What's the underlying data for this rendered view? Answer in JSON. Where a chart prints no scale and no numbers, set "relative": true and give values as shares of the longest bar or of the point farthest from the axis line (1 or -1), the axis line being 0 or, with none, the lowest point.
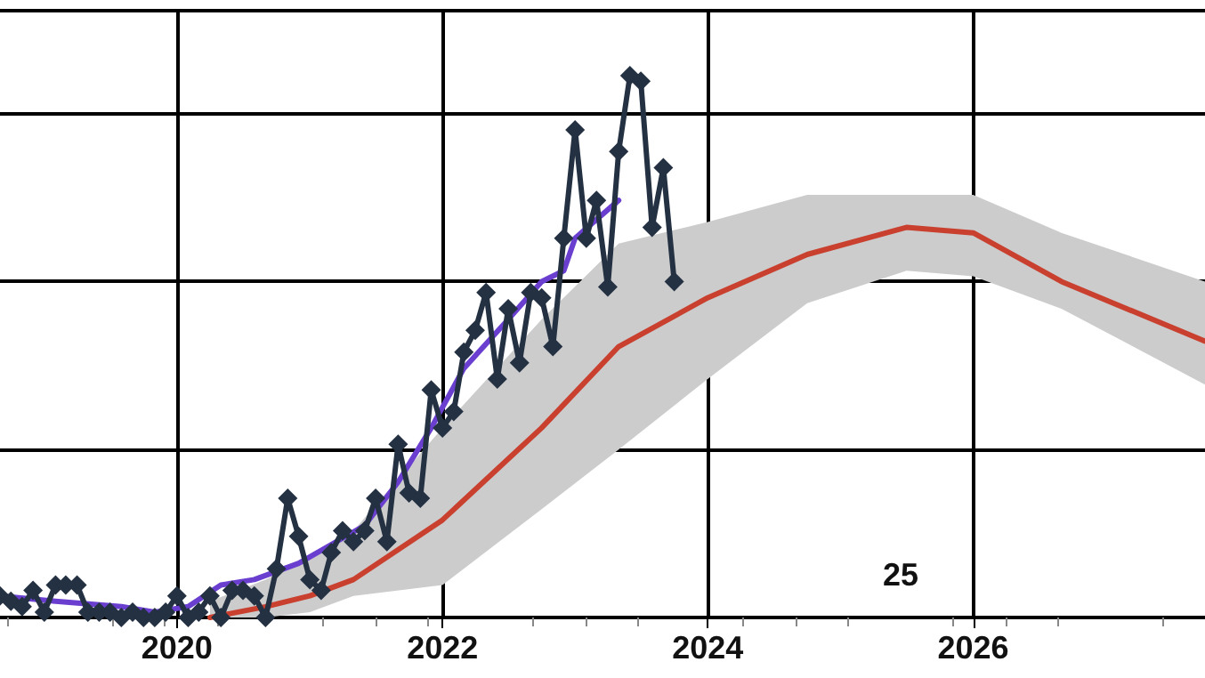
{
  "chart_data": {
    "type": "line",
    "relative": true,
    "xlim": [
      "2018-09",
      "2027-10"
    ],
    "xticks": [
      "2020",
      "2022",
      "2024",
      "2026"
    ],
    "grid": true,
    "annotations": [
      "25"
    ],
    "series": [
      {
        "color": "#c9402f",
        "x": [
          "2020-04",
          "2020-09",
          "2021-01",
          "2021-05",
          "2022-01",
          "2022-10",
          "2023-05",
          "2024-01",
          "2024-10",
          "2025-07",
          "2026-01",
          "2026-09",
          "2027-10"
        ],
        "values": [
          0.0,
          0.02,
          0.04,
          0.07,
          0.18,
          0.35,
          0.5,
          0.59,
          0.67,
          0.72,
          0.71,
          0.62,
          0.51
        ],
        "lower": [
          0.0,
          0.0,
          0.01,
          0.04,
          0.06,
          0.2,
          0.31,
          0.44,
          0.58,
          0.64,
          0.63,
          0.57,
          0.43
        ],
        "upper": [
          0.03,
          0.07,
          0.11,
          0.16,
          0.35,
          0.55,
          0.69,
          0.73,
          0.78,
          0.78,
          0.78,
          0.71,
          0.62
        ],
        "marker": "none"
      },
      {
        "color": "#6a3fd0",
        "marker": "none",
        "x": [
          "2018-09",
          "2019-02",
          "2019-08",
          "2019-11",
          "2020-02",
          "2020-05",
          "2020-08",
          "2020-12",
          "2021-06",
          "2021-09",
          "2021-12",
          "2022-03",
          "2022-07",
          "2022-10",
          "2022-12",
          "2023-01",
          "2023-05"
        ],
        "values": [
          0.04,
          0.03,
          0.02,
          0.01,
          0.02,
          0.06,
          0.07,
          0.1,
          0.17,
          0.25,
          0.35,
          0.46,
          0.55,
          0.62,
          0.64,
          0.7,
          0.77
        ]
      },
      {
        "color": "#243142",
        "marker": "diamond",
        "x": [
          "2018-09",
          "2018-10",
          "2018-11",
          "2018-12",
          "2019-01",
          "2019-02",
          "2019-03",
          "2019-04",
          "2019-05",
          "2019-06",
          "2019-07",
          "2019-08",
          "2019-09",
          "2019-10",
          "2019-11",
          "2019-12",
          "2020-01",
          "2020-02",
          "2020-03",
          "2020-04",
          "2020-05",
          "2020-06",
          "2020-07",
          "2020-08",
          "2020-09",
          "2020-10",
          "2020-11",
          "2020-12",
          "2021-01",
          "2021-02",
          "2021-03",
          "2021-04",
          "2021-05",
          "2021-06",
          "2021-07",
          "2021-08",
          "2021-09",
          "2021-10",
          "2021-11",
          "2021-12",
          "2022-01",
          "2022-02",
          "2022-03",
          "2022-04",
          "2022-05",
          "2022-06",
          "2022-07",
          "2022-08",
          "2022-09",
          "2022-10",
          "2022-11",
          "2022-12",
          "2023-01",
          "2023-02",
          "2023-03",
          "2023-04",
          "2023-05",
          "2023-06",
          "2023-07",
          "2023-08",
          "2023-09",
          "2023-10"
        ],
        "values": [
          0.04,
          0.03,
          0.02,
          0.05,
          0.01,
          0.06,
          0.06,
          0.06,
          0.01,
          0.01,
          0.01,
          0.0,
          0.01,
          0.0,
          0.0,
          0.01,
          0.04,
          0.0,
          0.01,
          0.04,
          0.0,
          0.05,
          0.05,
          0.04,
          0.0,
          0.09,
          0.22,
          0.15,
          0.07,
          0.05,
          0.12,
          0.16,
          0.14,
          0.16,
          0.22,
          0.14,
          0.32,
          0.23,
          0.22,
          0.42,
          0.35,
          0.38,
          0.49,
          0.53,
          0.6,
          0.44,
          0.57,
          0.47,
          0.6,
          0.59,
          0.5,
          0.7,
          0.9,
          0.7,
          0.77,
          0.61,
          0.86,
          1.0,
          0.99,
          0.72,
          0.83,
          0.62
        ]
      }
    ]
  }
}
